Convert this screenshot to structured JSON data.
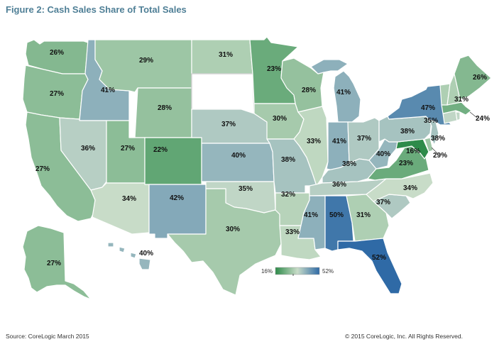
{
  "title": "Figure 2: Cash Sales Share of Total Sales",
  "source": "Source: CoreLogic March 2015",
  "copyright": "© 2015 CoreLogic, Inc. All Rights Reserved.",
  "legend": {
    "min_label": "16%",
    "max_label": "52%",
    "min": 16,
    "max": 52
  },
  "colors": {
    "low": "#2e8b4a",
    "mid": "#c8dcc8",
    "high": "#2f6aa6",
    "outline": "#ffffff",
    "no_data": "#ffffff"
  },
  "states": [
    {
      "abbr": "WA",
      "label": "26%",
      "value": 26
    },
    {
      "abbr": "OR",
      "label": "27%",
      "value": 27
    },
    {
      "abbr": "CA",
      "label": "27%",
      "value": 27
    },
    {
      "abbr": "ID",
      "label": "41%",
      "value": 41
    },
    {
      "abbr": "NV",
      "label": "36%",
      "value": 36
    },
    {
      "abbr": "MT",
      "label": "29%",
      "value": 29
    },
    {
      "abbr": "WY",
      "label": "28%",
      "value": 28
    },
    {
      "abbr": "UT",
      "label": "27%",
      "value": 27
    },
    {
      "abbr": "AZ",
      "label": "34%",
      "value": 34
    },
    {
      "abbr": "CO",
      "label": "22%",
      "value": 22
    },
    {
      "abbr": "NM",
      "label": "42%",
      "value": 42
    },
    {
      "abbr": "ND",
      "label": "31%",
      "value": 31
    },
    {
      "abbr": "SD",
      "label": "",
      "value": null
    },
    {
      "abbr": "NE",
      "label": "37%",
      "value": 37
    },
    {
      "abbr": "KS",
      "label": "40%",
      "value": 40
    },
    {
      "abbr": "OK",
      "label": "35%",
      "value": 35
    },
    {
      "abbr": "TX",
      "label": "30%",
      "value": 30
    },
    {
      "abbr": "MN",
      "label": "23%",
      "value": 23
    },
    {
      "abbr": "IA",
      "label": "30%",
      "value": 30
    },
    {
      "abbr": "MO",
      "label": "38%",
      "value": 38
    },
    {
      "abbr": "AR",
      "label": "32%",
      "value": 32
    },
    {
      "abbr": "LA",
      "label": "33%",
      "value": 33
    },
    {
      "abbr": "WI",
      "label": "28%",
      "value": 28
    },
    {
      "abbr": "IL",
      "label": "33%",
      "value": 33
    },
    {
      "abbr": "MI",
      "label": "41%",
      "value": 41
    },
    {
      "abbr": "IN",
      "label": "41%",
      "value": 41
    },
    {
      "abbr": "OH",
      "label": "37%",
      "value": 37
    },
    {
      "abbr": "KY",
      "label": "38%",
      "value": 38
    },
    {
      "abbr": "TN",
      "label": "36%",
      "value": 36
    },
    {
      "abbr": "MS",
      "label": "41%",
      "value": 41
    },
    {
      "abbr": "AL",
      "label": "50%",
      "value": 50
    },
    {
      "abbr": "GA",
      "label": "31%",
      "value": 31
    },
    {
      "abbr": "FL",
      "label": "52%",
      "value": 52
    },
    {
      "abbr": "SC",
      "label": "37%",
      "value": 37
    },
    {
      "abbr": "NC",
      "label": "34%",
      "value": 34
    },
    {
      "abbr": "VA",
      "label": "23%",
      "value": 23
    },
    {
      "abbr": "WV",
      "label": "40%",
      "value": 40
    },
    {
      "abbr": "MD",
      "label": "16%",
      "value": 16
    },
    {
      "abbr": "DE",
      "label": "29%",
      "value": 29
    },
    {
      "abbr": "PA",
      "label": "38%",
      "value": 38
    },
    {
      "abbr": "NJ",
      "label": "38%",
      "value": 38
    },
    {
      "abbr": "NY",
      "label": "47%",
      "value": 47
    },
    {
      "abbr": "CT",
      "label": "35%",
      "value": 35
    },
    {
      "abbr": "MA",
      "label": "24%",
      "value": 24
    },
    {
      "abbr": "VT",
      "label": "31%",
      "value": 31
    },
    {
      "abbr": "ME",
      "label": "26%",
      "value": 26
    },
    {
      "abbr": "AK",
      "label": "27%",
      "value": 27
    },
    {
      "abbr": "HI",
      "label": "40%",
      "value": 40
    }
  ]
}
